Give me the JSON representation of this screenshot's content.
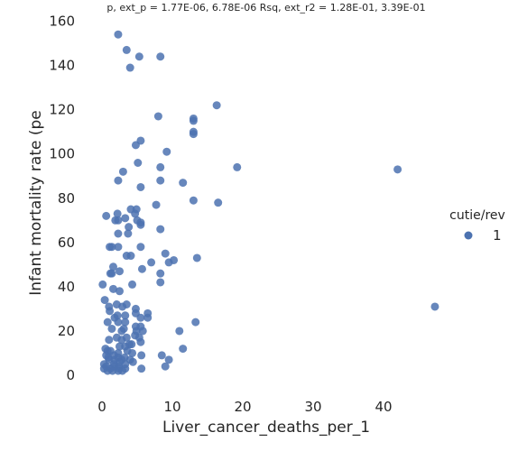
{
  "chart_data": {
    "type": "scatter",
    "title": "p, ext_p = 1.77E-06, 6.78E-06 Rsq, ext_r2 = 1.28E-01, 3.39E-01",
    "xlabel": "Liver_cancer_deaths_per_1",
    "ylabel": "Infant mortality rate (pe",
    "xlim": [
      -2,
      49
    ],
    "ylim": [
      -8,
      162
    ],
    "x_ticks": [
      "0",
      "10",
      "20",
      "30",
      "40"
    ],
    "x_tick_values": [
      0,
      10,
      20,
      30,
      40
    ],
    "y_ticks": [
      "0",
      "20",
      "40",
      "60",
      "80",
      "100",
      "120",
      "140",
      "160"
    ],
    "y_tick_values": [
      0,
      20,
      40,
      60,
      80,
      100,
      120,
      140,
      160
    ],
    "grid": false,
    "legend": {
      "title": "cutie/rev",
      "entries": [
        "1"
      ],
      "placement": "right"
    },
    "series": [
      {
        "color": "#4c72b0",
        "points": [
          [
            2.3,
            154
          ],
          [
            3.5,
            147
          ],
          [
            5.3,
            144
          ],
          [
            8.3,
            144
          ],
          [
            4,
            139
          ],
          [
            16.3,
            122
          ],
          [
            8,
            117
          ],
          [
            13,
            116
          ],
          [
            13,
            115
          ],
          [
            13,
            110
          ],
          [
            13,
            109
          ],
          [
            5.5,
            106
          ],
          [
            4.8,
            104
          ],
          [
            9.2,
            101
          ],
          [
            5.1,
            96
          ],
          [
            8.3,
            94
          ],
          [
            19.2,
            94
          ],
          [
            42,
            93
          ],
          [
            3,
            92
          ],
          [
            2.3,
            88
          ],
          [
            8.3,
            88
          ],
          [
            11.5,
            87
          ],
          [
            5.5,
            85
          ],
          [
            7.7,
            77
          ],
          [
            13,
            79
          ],
          [
            16.5,
            78
          ],
          [
            4.1,
            75
          ],
          [
            4.9,
            75
          ],
          [
            2.2,
            73
          ],
          [
            4.7,
            73
          ],
          [
            0.6,
            72
          ],
          [
            3.3,
            71
          ],
          [
            5,
            70
          ],
          [
            1.9,
            70
          ],
          [
            2.3,
            70
          ],
          [
            5.5,
            69
          ],
          [
            5.5,
            68
          ],
          [
            3.8,
            67
          ],
          [
            8.3,
            66
          ],
          [
            2.3,
            64
          ],
          [
            3.7,
            64
          ],
          [
            1.1,
            58
          ],
          [
            1.4,
            58
          ],
          [
            2.3,
            58
          ],
          [
            5.5,
            58
          ],
          [
            9,
            55
          ],
          [
            3.5,
            54
          ],
          [
            4.1,
            54
          ],
          [
            13.5,
            53
          ],
          [
            10.2,
            52
          ],
          [
            9.5,
            51
          ],
          [
            7,
            51
          ],
          [
            1.6,
            49
          ],
          [
            5.7,
            48
          ],
          [
            2.5,
            47
          ],
          [
            1.2,
            46
          ],
          [
            1.4,
            46
          ],
          [
            8.3,
            46
          ],
          [
            8.3,
            42
          ],
          [
            0.1,
            41
          ],
          [
            4.3,
            41
          ],
          [
            1.6,
            39
          ],
          [
            2.5,
            38
          ],
          [
            0.4,
            34
          ],
          [
            1,
            31
          ],
          [
            2.9,
            31
          ],
          [
            3.5,
            32
          ],
          [
            2.1,
            32
          ],
          [
            1.1,
            29
          ],
          [
            4.8,
            30
          ],
          [
            47.3,
            31
          ],
          [
            4.8,
            28
          ],
          [
            6.5,
            28
          ],
          [
            2.2,
            27
          ],
          [
            3.3,
            27
          ],
          [
            5.5,
            26
          ],
          [
            6.5,
            26
          ],
          [
            1.8,
            26
          ],
          [
            0.8,
            24
          ],
          [
            2.3,
            24
          ],
          [
            3.3,
            24
          ],
          [
            13.3,
            24
          ],
          [
            4.8,
            22
          ],
          [
            5.5,
            22
          ],
          [
            1.4,
            21
          ],
          [
            3.1,
            21
          ],
          [
            4.9,
            20
          ],
          [
            5.8,
            20
          ],
          [
            2.8,
            20
          ],
          [
            11,
            20
          ],
          [
            4.7,
            18
          ],
          [
            2.1,
            17
          ],
          [
            3.5,
            17
          ],
          [
            5.3,
            17
          ],
          [
            1,
            16
          ],
          [
            2.8,
            16
          ],
          [
            5.5,
            15
          ],
          [
            3.9,
            14
          ],
          [
            4.2,
            14
          ],
          [
            2.5,
            13
          ],
          [
            3.3,
            13
          ],
          [
            0.5,
            12
          ],
          [
            11.5,
            12
          ],
          [
            0.8,
            11
          ],
          [
            1.2,
            11
          ],
          [
            3.6,
            11
          ],
          [
            4.3,
            10
          ],
          [
            2.3,
            10
          ],
          [
            0.6,
            9
          ],
          [
            1.7,
            9
          ],
          [
            5.6,
            9
          ],
          [
            8.5,
            9
          ],
          [
            0.9,
            8
          ],
          [
            2.3,
            8
          ],
          [
            3.2,
            8
          ],
          [
            1,
            7
          ],
          [
            1.8,
            7
          ],
          [
            2.8,
            7
          ],
          [
            4,
            7
          ],
          [
            9.5,
            7
          ],
          [
            0.3,
            5
          ],
          [
            1.7,
            5
          ],
          [
            3.3,
            5
          ],
          [
            0.6,
            4
          ],
          [
            2.4,
            4
          ],
          [
            9,
            4
          ],
          [
            0.3,
            3
          ],
          [
            1.2,
            3
          ],
          [
            2.4,
            3
          ],
          [
            3.3,
            3
          ],
          [
            5.6,
            3
          ],
          [
            0.8,
            2
          ],
          [
            1.5,
            2
          ],
          [
            2.3,
            2
          ],
          [
            2.9,
            2
          ],
          [
            1.7,
            4
          ],
          [
            2.5,
            6
          ],
          [
            4.4,
            6
          ]
        ]
      }
    ]
  }
}
